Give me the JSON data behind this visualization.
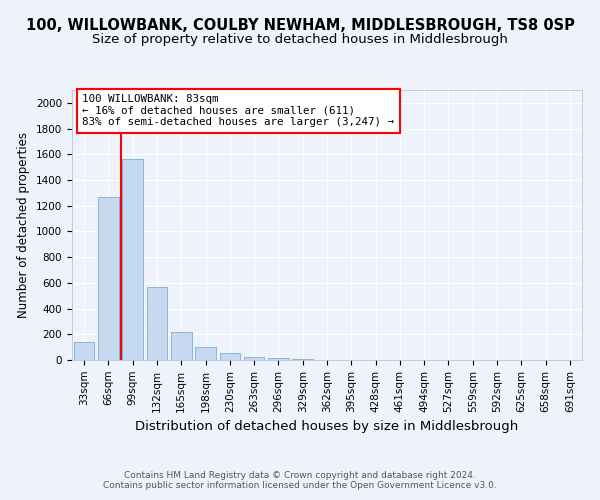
{
  "title": "100, WILLOWBANK, COULBY NEWHAM, MIDDLESBROUGH, TS8 0SP",
  "subtitle": "Size of property relative to detached houses in Middlesbrough",
  "xlabel": "Distribution of detached houses by size in Middlesbrough",
  "ylabel": "Number of detached properties",
  "bar_labels": [
    "33sqm",
    "66sqm",
    "99sqm",
    "132sqm",
    "165sqm",
    "198sqm",
    "230sqm",
    "263sqm",
    "296sqm",
    "329sqm",
    "362sqm",
    "395sqm",
    "428sqm",
    "461sqm",
    "494sqm",
    "527sqm",
    "559sqm",
    "592sqm",
    "625sqm",
    "658sqm",
    "691sqm"
  ],
  "bar_values": [
    140,
    1265,
    1560,
    570,
    215,
    100,
    55,
    20,
    15,
    10,
    0,
    0,
    0,
    0,
    0,
    0,
    0,
    0,
    0,
    0,
    0
  ],
  "bar_color": "#c6d9f0",
  "bar_edge_color": "#7bafd4",
  "annotation_line1": "100 WILLOWBANK: 83sqm",
  "annotation_line2": "← 16% of detached houses are smaller (611)",
  "annotation_line3": "83% of semi-detached houses are larger (3,247) →",
  "property_size_sqm": 83,
  "ylim": [
    0,
    2100
  ],
  "yticks": [
    0,
    200,
    400,
    600,
    800,
    1000,
    1200,
    1400,
    1600,
    1800,
    2000
  ],
  "background_color": "#eef2fb",
  "grid_color": "#ffffff",
  "footer_text": "Contains HM Land Registry data © Crown copyright and database right 2024.\nContains public sector information licensed under the Open Government Licence v3.0.",
  "title_fontsize": 10.5,
  "subtitle_fontsize": 9.5,
  "xlabel_fontsize": 9.5,
  "ylabel_fontsize": 8.5,
  "tick_fontsize": 7.5,
  "footer_fontsize": 6.5
}
